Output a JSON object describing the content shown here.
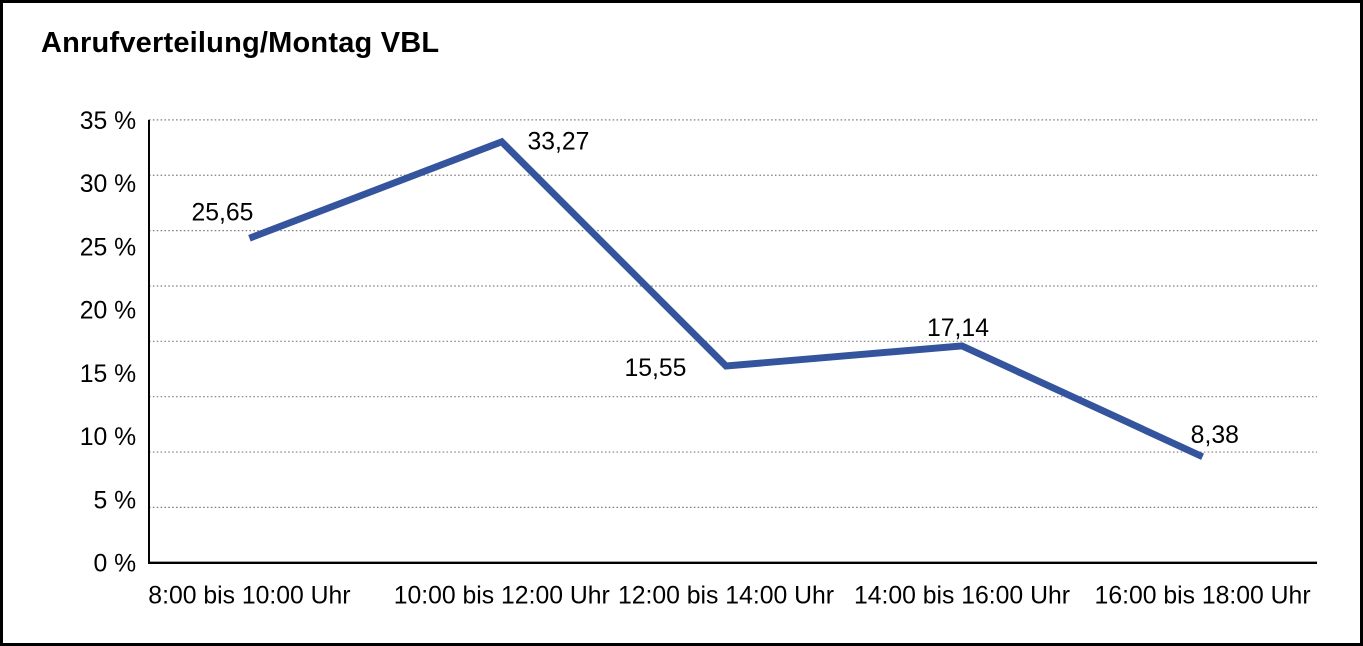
{
  "title": "Anrufverteilung/Montag VBL",
  "colors": {
    "line": "#35549E",
    "grid": "#808080",
    "axis": "#000000",
    "text": "#000000",
    "background": "#FFFFFF",
    "frame_border": "#000000"
  },
  "chart_data": {
    "type": "line",
    "title": "Anrufverteilung/Montag VBL",
    "categories": [
      "8:00 bis 10:00 Uhr",
      "10:00 bis 12:00 Uhr",
      "12:00 bis 14:00 Uhr",
      "14:00 bis 16:00 Uhr",
      "16:00 bis 18:00 Uhr"
    ],
    "values": [
      25.65,
      33.27,
      15.55,
      17.14,
      8.38
    ],
    "value_labels": [
      "25,65",
      "33,27",
      "15,55",
      "17,14",
      "8,38"
    ],
    "value_label_anchors": [
      "above-left",
      "right",
      "left",
      "above",
      "above-right"
    ],
    "xlabel": "",
    "ylabel": "",
    "y_ticks": [
      "35 %",
      "30 %",
      "25 %",
      "20 %",
      "15 %",
      "10 %",
      "5 %",
      "0 %"
    ],
    "ylim": [
      0,
      35
    ],
    "grid": "horizontal-dotted",
    "gridline_intervals": 8,
    "legend": "none"
  }
}
